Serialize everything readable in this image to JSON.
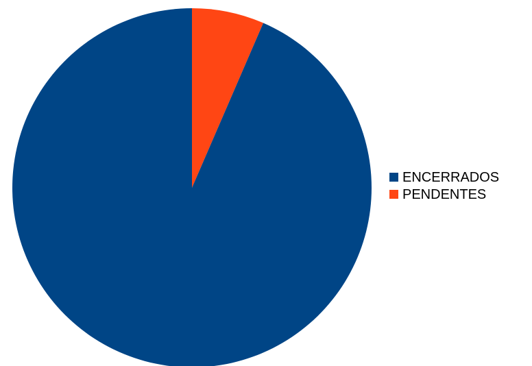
{
  "chart_data": {
    "type": "pie",
    "title": "",
    "series": [
      {
        "values": [
          93.5,
          6.5
        ]
      }
    ],
    "slices": [
      {
        "label": "PENDENTES",
        "value": 6.5,
        "color": "#ff4614"
      },
      {
        "label": "ENCERRADOS",
        "value": 93.5,
        "color": "#004586"
      }
    ],
    "start_angle": "12 o'clock, clockwise",
    "legend": {
      "placement": "right",
      "entries": [
        {
          "label": "ENCERRADOS",
          "color": "#004586"
        },
        {
          "label": "PENDENTES",
          "color": "#ff4614"
        }
      ]
    }
  }
}
